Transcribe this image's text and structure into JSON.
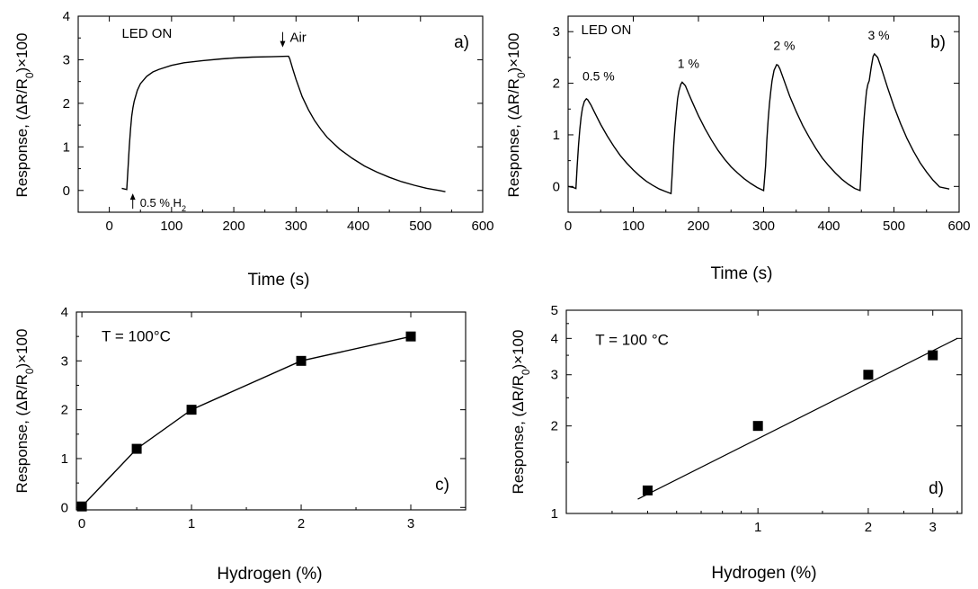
{
  "chart_data": [
    {
      "type": "line",
      "panel_label": "a)",
      "xlabel": "Time (s)",
      "ylabel": "Response, (ΔR/R₀)×100",
      "xlim": [
        -50,
        600
      ],
      "ylim": [
        -0.5,
        4
      ],
      "xticks": [
        0,
        100,
        200,
        300,
        400,
        500,
        600
      ],
      "yticks": [
        0,
        1,
        2,
        3,
        4
      ],
      "grid": false,
      "annotations": [
        {
          "text": "LED ON",
          "x": 20,
          "y": 3.5
        },
        {
          "text": "Air",
          "x": 293,
          "y": 3.45,
          "arrow": "down"
        },
        {
          "text": "0.5 % H₂",
          "x": 55,
          "y": -0.38,
          "arrow": "up"
        }
      ],
      "series": [
        {
          "x": [
            20,
            28,
            30,
            32,
            34,
            36,
            38,
            40,
            45,
            50,
            60,
            70,
            80,
            100,
            120,
            150,
            180,
            200,
            230,
            260,
            285,
            288,
            290,
            292,
            295,
            300,
            310,
            320,
            330,
            340,
            350,
            370,
            390,
            410,
            430,
            450,
            470,
            490,
            510,
            530,
            540
          ],
          "y": [
            0.05,
            0.02,
            0.5,
            1.0,
            1.4,
            1.7,
            1.9,
            2.05,
            2.3,
            2.45,
            2.62,
            2.72,
            2.78,
            2.87,
            2.93,
            2.98,
            3.02,
            3.04,
            3.06,
            3.07,
            3.08,
            3.08,
            3.02,
            2.92,
            2.78,
            2.55,
            2.15,
            1.85,
            1.6,
            1.4,
            1.22,
            0.95,
            0.74,
            0.56,
            0.42,
            0.3,
            0.2,
            0.12,
            0.05,
            0.0,
            -0.03
          ]
        }
      ]
    },
    {
      "type": "line",
      "panel_label": "b)",
      "xlabel": "Time (s)",
      "ylabel": "Response, (ΔR/R₀)×100",
      "xlim": [
        0,
        600
      ],
      "ylim": [
        -0.5,
        3.3
      ],
      "xticks": [
        0,
        100,
        200,
        300,
        400,
        500,
        600
      ],
      "yticks": [
        0,
        1,
        2,
        3
      ],
      "grid": false,
      "annotations": [
        {
          "text": "LED ON",
          "x": 20,
          "y": 2.95
        },
        {
          "text": "0.5 %",
          "x": 22,
          "y": 2.05
        },
        {
          "text": "1 %",
          "x": 168,
          "y": 2.3
        },
        {
          "text": "2 %",
          "x": 315,
          "y": 2.65
        },
        {
          "text": "3 %",
          "x": 460,
          "y": 2.85
        }
      ],
      "series": [
        {
          "x": [
            0,
            8,
            12,
            14,
            16,
            18,
            20,
            22,
            25,
            28,
            30,
            35,
            40,
            50,
            60,
            70,
            80,
            90,
            100,
            110,
            120,
            130,
            140,
            150,
            158,
            160,
            162,
            164,
            166,
            168,
            170,
            173,
            175,
            180,
            185,
            190,
            200,
            210,
            220,
            230,
            240,
            250,
            260,
            270,
            280,
            290,
            300,
            303,
            305,
            307,
            309,
            311,
            313,
            316,
            320,
            322,
            325,
            330,
            340,
            350,
            360,
            370,
            380,
            390,
            400,
            410,
            420,
            430,
            440,
            448,
            450,
            452,
            454,
            456,
            458,
            460,
            462,
            465,
            468,
            470,
            475,
            480,
            490,
            500,
            510,
            520,
            530,
            540,
            550,
            560,
            570,
            585
          ],
          "y": [
            0.0,
            -0.02,
            -0.04,
            0.4,
            0.8,
            1.1,
            1.35,
            1.52,
            1.65,
            1.7,
            1.68,
            1.58,
            1.45,
            1.2,
            0.98,
            0.78,
            0.6,
            0.45,
            0.32,
            0.2,
            0.1,
            0.02,
            -0.05,
            -0.1,
            -0.14,
            0.3,
            0.8,
            1.15,
            1.45,
            1.7,
            1.85,
            1.98,
            2.02,
            1.95,
            1.8,
            1.65,
            1.37,
            1.12,
            0.9,
            0.7,
            0.53,
            0.38,
            0.26,
            0.15,
            0.06,
            -0.02,
            -0.08,
            0.4,
            0.9,
            1.3,
            1.6,
            1.85,
            2.05,
            2.25,
            2.36,
            2.35,
            2.28,
            2.1,
            1.75,
            1.45,
            1.18,
            0.95,
            0.74,
            0.55,
            0.4,
            0.26,
            0.14,
            0.04,
            -0.04,
            -0.08,
            0.4,
            0.9,
            1.3,
            1.6,
            1.85,
            1.98,
            2.05,
            2.3,
            2.52,
            2.57,
            2.5,
            2.32,
            1.92,
            1.55,
            1.22,
            0.93,
            0.68,
            0.46,
            0.28,
            0.12,
            -0.01,
            -0.05
          ]
        }
      ]
    },
    {
      "type": "line",
      "panel_label": "c)",
      "xlabel": "Hydrogen (%)",
      "ylabel": "Response, (ΔR/R₀)×100",
      "xlim": [
        -0.05,
        3.5
      ],
      "ylim": [
        -0.05,
        4
      ],
      "xticks": [
        0,
        1,
        2,
        3
      ],
      "yticks": [
        0,
        1,
        2,
        3,
        4
      ],
      "grid": false,
      "annotations": [
        {
          "text": "T = 100°C",
          "x": 0.18,
          "y": 3.4
        }
      ],
      "series": [
        {
          "x": [
            0,
            0.5,
            1,
            2,
            3
          ],
          "y": [
            0.02,
            1.2,
            2.0,
            3.0,
            3.5
          ],
          "marker": "square"
        }
      ]
    },
    {
      "type": "scatter",
      "panel_label": "d)",
      "xlabel": "Hydrogen (%)",
      "ylabel": "Response, (ΔR/R₀)×100",
      "xscale": "log",
      "yscale": "log",
      "xlim": [
        0.3,
        3.6
      ],
      "ylim": [
        1,
        5
      ],
      "xticks": [
        1,
        2,
        3
      ],
      "yticks": [
        1,
        2,
        3,
        4,
        5
      ],
      "grid": false,
      "annotations": [
        {
          "text": "T = 100 °C",
          "x": 0.36,
          "y": 3.8
        }
      ],
      "series": [
        {
          "x": [
            0.5,
            1,
            2,
            3
          ],
          "y": [
            1.2,
            2.0,
            3.0,
            3.5
          ],
          "marker": "square"
        }
      ],
      "fit": {
        "x": [
          0.47,
          3.5
        ],
        "y": [
          1.12,
          4.0
        ]
      }
    }
  ]
}
